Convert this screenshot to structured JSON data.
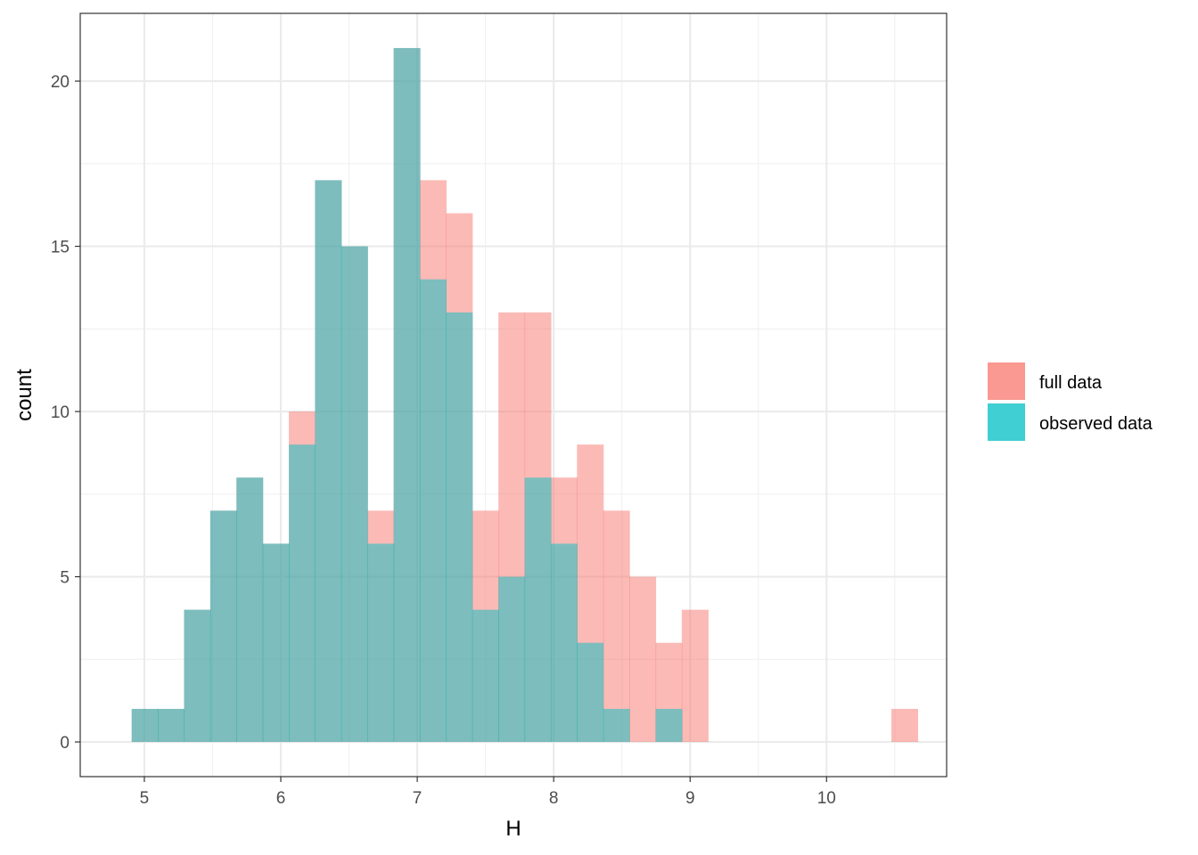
{
  "chart_data": {
    "type": "histogram",
    "xlabel": "H",
    "ylabel": "count",
    "xlim": [
      4.53,
      10.88
    ],
    "ylim": [
      -1.05,
      22.05
    ],
    "x_ticks": [
      5,
      6,
      7,
      8,
      9,
      10
    ],
    "y_ticks": [
      0,
      5,
      10,
      15,
      20
    ],
    "bin_width": 0.192,
    "bin_edges": [
      4.907,
      5.099,
      5.291,
      5.483,
      5.675,
      5.867,
      6.059,
      6.251,
      6.443,
      6.635,
      6.827,
      7.019,
      7.211,
      7.403,
      7.595,
      7.787,
      7.979,
      8.171,
      8.363,
      8.555,
      8.747,
      8.939,
      9.131,
      9.323,
      9.515,
      9.707,
      9.899,
      10.091,
      10.283,
      10.475,
      10.667
    ],
    "grid": true,
    "legend_position": "right",
    "series": [
      {
        "name": "full data",
        "color": "#F8766D",
        "counts": [
          1,
          1,
          4,
          7,
          8,
          6,
          10,
          17,
          15,
          7,
          21,
          17,
          16,
          7,
          13,
          13,
          8,
          9,
          7,
          5,
          3,
          4,
          0,
          0,
          0,
          0,
          0,
          0,
          0,
          1
        ]
      },
      {
        "name": "observed data",
        "color": "#00BFC4",
        "counts": [
          1,
          1,
          4,
          7,
          8,
          6,
          9,
          17,
          15,
          6,
          21,
          14,
          13,
          4,
          5,
          8,
          6,
          3,
          1,
          0,
          1,
          0,
          0,
          0,
          0,
          0,
          0,
          0,
          0,
          0
        ]
      }
    ]
  }
}
